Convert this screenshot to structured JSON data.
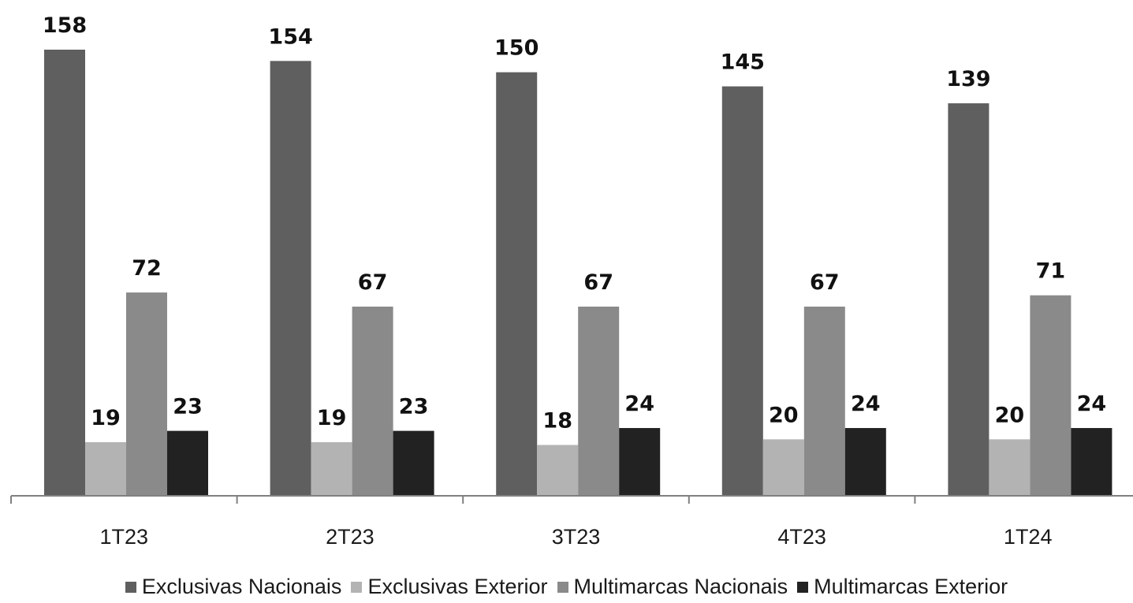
{
  "chart_data": {
    "type": "bar",
    "categories": [
      "1T23",
      "2T23",
      "3T23",
      "4T23",
      "1T24"
    ],
    "series": [
      {
        "name": "Exclusivas Nacionais",
        "color": "#5f5f5f",
        "values": [
          158,
          154,
          150,
          145,
          139
        ]
      },
      {
        "name": "Exclusivas Exterior",
        "color": "#b3b3b3",
        "values": [
          19,
          19,
          18,
          20,
          20
        ]
      },
      {
        "name": "Multimarcas Nacionais",
        "color": "#8a8a8a",
        "values": [
          72,
          67,
          67,
          67,
          71
        ]
      },
      {
        "name": "Multimarcas Exterior",
        "color": "#222222",
        "values": [
          23,
          23,
          24,
          24,
          24
        ]
      }
    ],
    "ylim": [
      0,
      165
    ],
    "grid": false,
    "legend_position": "bottom",
    "data_labels": true
  }
}
